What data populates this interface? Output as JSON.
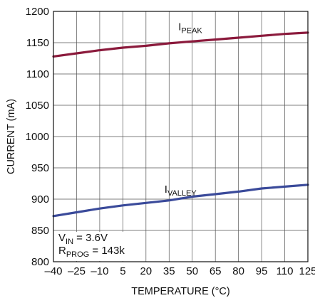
{
  "chart_data": {
    "type": "line",
    "xlabel": "TEMPERATURE (°C)",
    "ylabel": "CURRENT (mA)",
    "xlim": [
      -40,
      125
    ],
    "ylim": [
      800,
      1200
    ],
    "grid": true,
    "xticks": [
      -40,
      -25,
      -10,
      5,
      20,
      35,
      50,
      65,
      80,
      95,
      110,
      125
    ],
    "yticks": [
      800,
      850,
      900,
      950,
      1000,
      1050,
      1100,
      1150,
      1200
    ],
    "xtick_labels": [
      "–40",
      "–25",
      "–10",
      "5",
      "20",
      "35",
      "50",
      "65",
      "80",
      "95",
      "110",
      "125"
    ],
    "ytick_labels": [
      "800",
      "850",
      "900",
      "950",
      "1000",
      "1050",
      "1100",
      "1150",
      "1200"
    ],
    "series": [
      {
        "name": "IPEAK",
        "label_main": "I",
        "label_sub": "PEAK",
        "color": "#8b1a3c",
        "x": [
          -40,
          -25,
          -10,
          5,
          20,
          35,
          50,
          65,
          80,
          95,
          110,
          125
        ],
        "y": [
          1128,
          1133,
          1138,
          1142,
          1145,
          1149,
          1152,
          1155,
          1158,
          1161,
          1164,
          1166
        ]
      },
      {
        "name": "IVALLEY",
        "label_main": "I",
        "label_sub": "VALLEY",
        "color": "#3a4a9a",
        "x": [
          -40,
          -25,
          -10,
          5,
          20,
          35,
          50,
          65,
          80,
          95,
          110,
          125
        ],
        "y": [
          873,
          879,
          885,
          890,
          894,
          898,
          904,
          908,
          912,
          917,
          920,
          923
        ]
      }
    ],
    "annotations": {
      "vin_main": "V",
      "vin_sub": "IN",
      "vin_value": " = 3.6V",
      "rprog_main": "R",
      "rprog_sub": "PROG",
      "rprog_value": " = 143k"
    }
  }
}
